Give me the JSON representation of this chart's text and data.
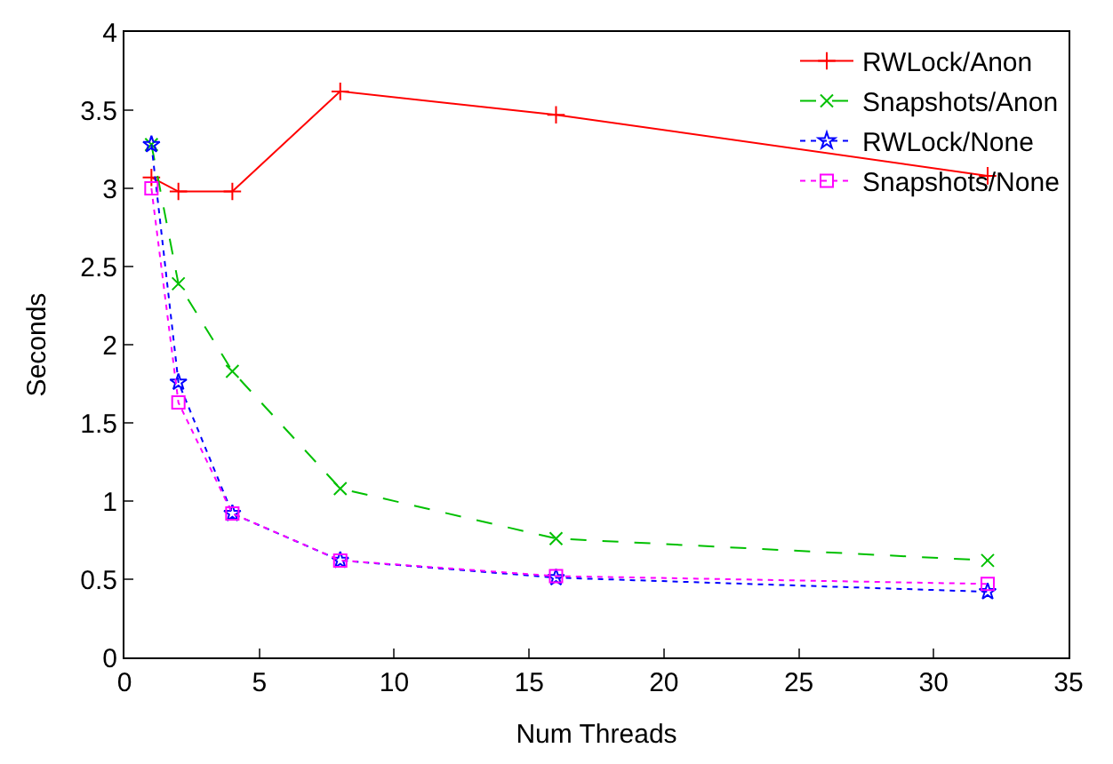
{
  "chart_data": {
    "type": "line",
    "xlabel": "Num Threads",
    "ylabel": "Seconds",
    "x": [
      1,
      2,
      4,
      8,
      16,
      32
    ],
    "series": [
      {
        "name": "RWLock/Anon",
        "color": "#ff0000",
        "marker": "cross",
        "line_style": "solid",
        "values": [
          3.07,
          2.98,
          2.98,
          3.62,
          3.47,
          3.08
        ]
      },
      {
        "name": "Snapshots/Anon",
        "color": "#00c000",
        "marker": "x",
        "line_style": "dashed",
        "values": [
          3.28,
          2.39,
          1.83,
          1.08,
          0.76,
          0.62
        ]
      },
      {
        "name": "RWLock/None",
        "color": "#0000ff",
        "marker": "star",
        "line_style": "dotted",
        "values": [
          3.28,
          1.76,
          0.92,
          0.62,
          0.51,
          0.42
        ]
      },
      {
        "name": "Snapshots/None",
        "color": "#ff00ff",
        "marker": "square",
        "line_style": "dotted",
        "values": [
          3.0,
          1.63,
          0.92,
          0.62,
          0.52,
          0.47
        ]
      }
    ],
    "xlim": [
      0,
      35
    ],
    "xticks": [
      0,
      5,
      10,
      15,
      20,
      25,
      30,
      35
    ],
    "ylim": [
      0,
      4
    ],
    "yticks": [
      0,
      0.5,
      1,
      1.5,
      2,
      2.5,
      3,
      3.5,
      4
    ],
    "legend": "top right"
  }
}
